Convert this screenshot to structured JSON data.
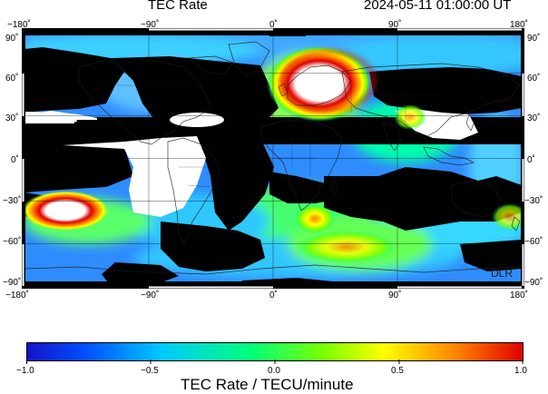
{
  "header": {
    "title": "TEC Rate",
    "timestamp": "2024-05-11  01:00:00 UT"
  },
  "map": {
    "x_ticks_top": [
      "−180˚",
      "−90˚",
      "0˚",
      "90˚",
      "180˚"
    ],
    "x_ticks_bottom": [
      "−180˚",
      "−90˚",
      "0˚",
      "90˚",
      "180˚"
    ],
    "y_ticks_left": [
      "90˚",
      "60˚",
      "30˚",
      "0˚",
      "−30˚",
      "−60˚",
      "−90˚"
    ],
    "y_ticks_right": [
      "90˚",
      "60˚",
      "30˚",
      "0˚",
      "−30˚",
      "−60˚",
      "−90˚"
    ],
    "watermark": "DLR",
    "projection": "equirectangular",
    "lon_range": [
      -180,
      180
    ],
    "lat_range": [
      -90,
      90
    ]
  },
  "colorbar": {
    "ticks": [
      "−1.0",
      "−0.5",
      "0.0",
      "0.5",
      "1.0"
    ],
    "label": "TEC Rate / TECU/minute",
    "range": [
      -1.0,
      1.0
    ],
    "colors": [
      "#1414c8",
      "#0050ff",
      "#00c8ff",
      "#00ff7a",
      "#7aff00",
      "#ffff00",
      "#ff8000",
      "#e00000"
    ]
  }
}
